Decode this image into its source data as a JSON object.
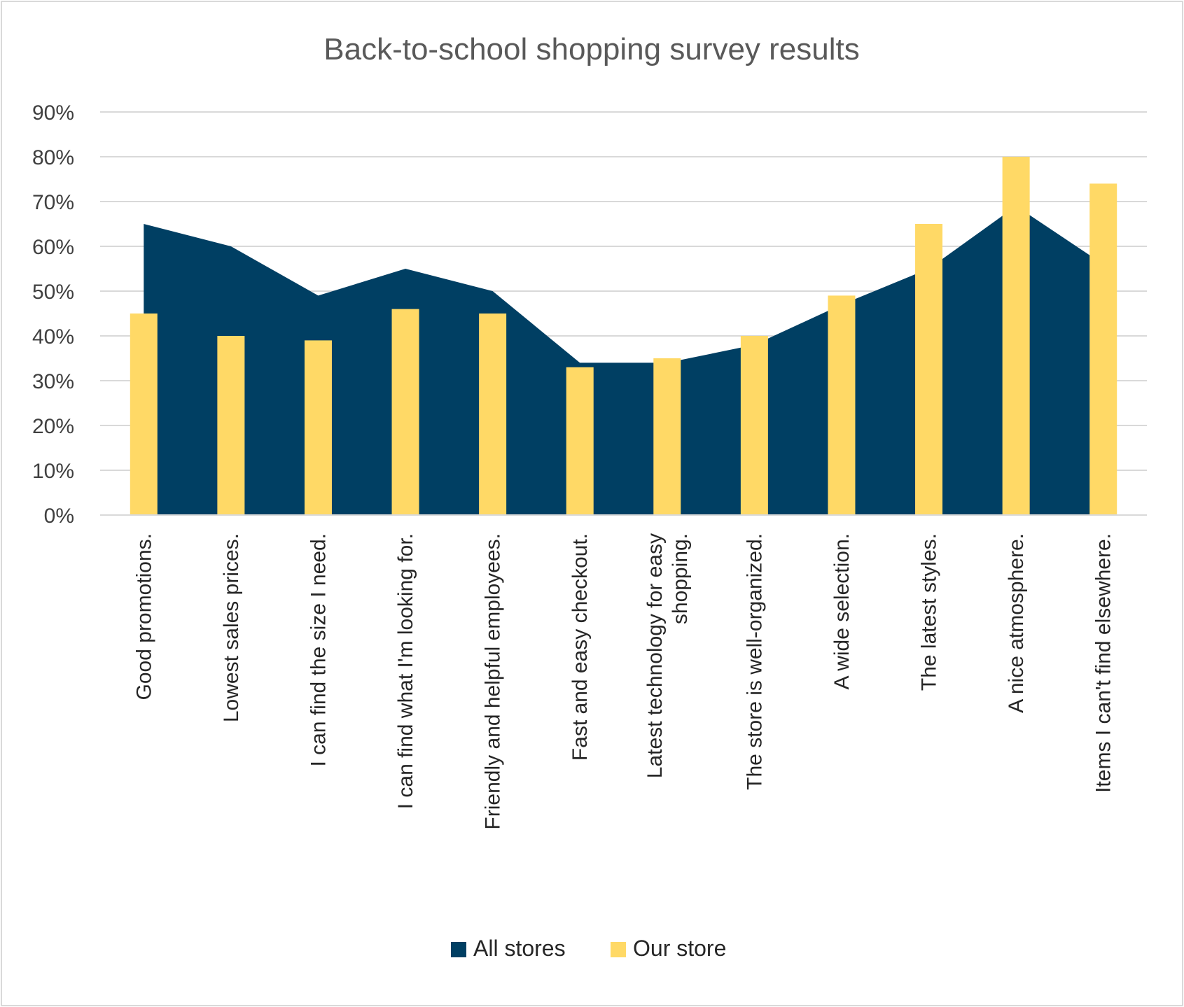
{
  "chart_data": {
    "type": "bar",
    "title": "Back-to-school shopping survey results",
    "xlabel": "",
    "ylabel": "",
    "ylim": [
      0,
      0.9
    ],
    "y_ticks": [
      "0%",
      "10%",
      "20%",
      "30%",
      "40%",
      "50%",
      "60%",
      "70%",
      "80%",
      "90%"
    ],
    "grid": true,
    "legend_position": "bottom",
    "categories": [
      [
        "Good promotions."
      ],
      [
        "Lowest sales prices."
      ],
      [
        "I can find the size I need."
      ],
      [
        "I can find what I'm looking for."
      ],
      [
        "Friendly and helpful employees."
      ],
      [
        "Fast and easy checkout."
      ],
      [
        "Latest technology for easy",
        "shopping."
      ],
      [
        "The store is well-organized."
      ],
      [
        "A wide selection."
      ],
      [
        "The latest styles."
      ],
      [
        "A nice atmosphere."
      ],
      [
        "Items I can't find elsewhere."
      ]
    ],
    "series": [
      {
        "name": "All stores",
        "type": "area",
        "color": "#003f63",
        "values": [
          0.65,
          0.6,
          0.49,
          0.55,
          0.5,
          0.34,
          0.34,
          0.38,
          0.47,
          0.55,
          0.69,
          0.56
        ]
      },
      {
        "name": "Our store",
        "type": "bar",
        "color": "#ffd966",
        "values": [
          0.45,
          0.4,
          0.39,
          0.46,
          0.45,
          0.33,
          0.35,
          0.4,
          0.49,
          0.65,
          0.8,
          0.74
        ]
      }
    ]
  }
}
